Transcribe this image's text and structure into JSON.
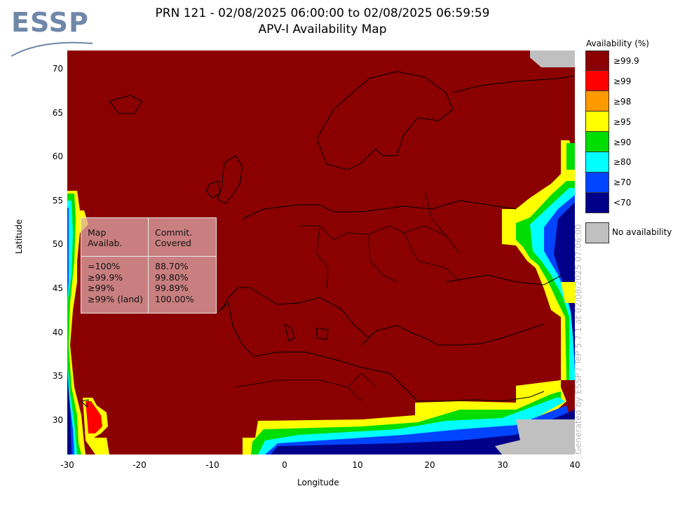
{
  "logo": {
    "text": "ESSP"
  },
  "title_line1": "PRN 121 - 02/08/2025 06:00:00 to 02/08/2025 06:59:59",
  "title_line2": "APV-I Availability Map",
  "axes": {
    "xlabel": "Longitude",
    "ylabel": "Latitude",
    "xticks": [
      "-30",
      "-20",
      "-10",
      "0",
      "10",
      "20",
      "30",
      "40"
    ],
    "yticks": [
      "70",
      "65",
      "60",
      "55",
      "50",
      "45",
      "40",
      "35",
      "30"
    ],
    "xlim": [
      -30,
      40
    ],
    "ylim": [
      26,
      72
    ]
  },
  "stats_table": {
    "header_col1": "Map\nAvailab.",
    "header_col2": "Commit.\nCovered",
    "rows": [
      {
        "level": "=100%",
        "covered": "88.70%"
      },
      {
        "level": "≥99.9%",
        "covered": "99.80%"
      },
      {
        "level": "≥99%",
        "covered": "99.89%"
      },
      {
        "level": "≥99% (land)",
        "covered": "100.00%"
      }
    ]
  },
  "legend": {
    "title": "Availability (%)",
    "items": [
      {
        "label": "≥99.9",
        "color": "#8b0000"
      },
      {
        "label": "≥99",
        "color": "#ff0000"
      },
      {
        "label": "≥98",
        "color": "#ff9900"
      },
      {
        "label": "≥95",
        "color": "#ffff00"
      },
      {
        "label": "≥90",
        "color": "#00dd00"
      },
      {
        "label": "≥80",
        "color": "#00ffff"
      },
      {
        "label": "≥70",
        "color": "#0044ff"
      },
      {
        "label": "<70",
        "color": "#000088"
      }
    ],
    "no_availability_label": "No availability",
    "no_availability_color": "#c0c0c0"
  },
  "credit": "Generated by ESSP / TeP 5.7.1 at 02/08/2025 07:06:00"
}
